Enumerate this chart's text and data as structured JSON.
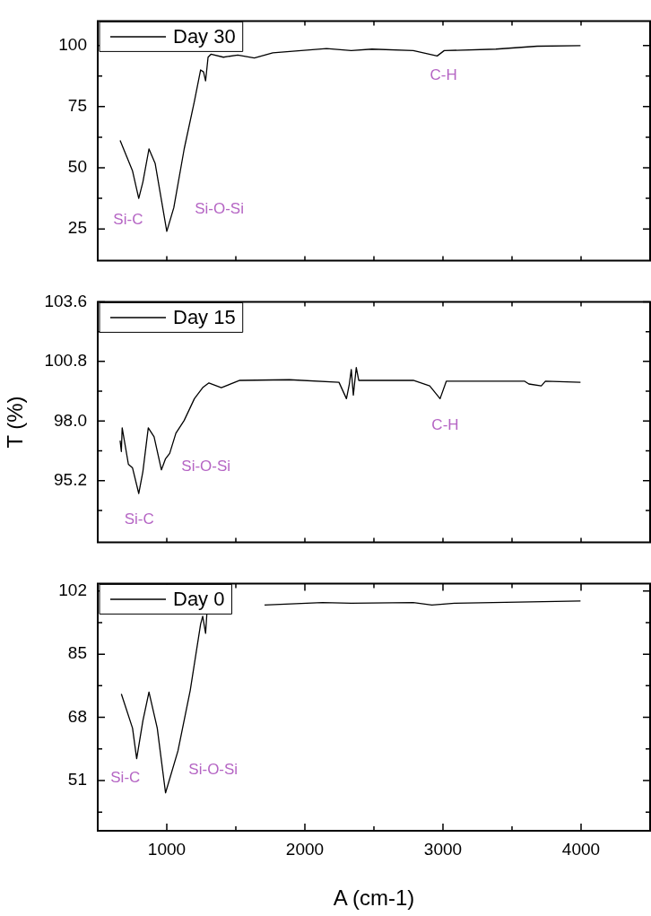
{
  "chart_data": [
    {
      "type": "line",
      "x": [
        662,
        752,
        797,
        827,
        871,
        916,
        1000,
        1051,
        1126,
        1200,
        1245,
        1266,
        1281,
        1299,
        1320,
        1410,
        1514,
        1634,
        1768,
        2157,
        2336,
        2486,
        2785,
        2958,
        3009,
        3383,
        3682,
        3996
      ],
      "series": [
        {
          "name": "Day 30",
          "color": "#000000",
          "values": [
            61.2,
            48.7,
            37.5,
            44.2,
            57.7,
            51.7,
            24,
            33.7,
            57.7,
            77.2,
            90,
            89.2,
            85.5,
            95.2,
            96.4,
            95.2,
            96.1,
            94.9,
            97,
            98.7,
            97.9,
            98.5,
            97.9,
            95.7,
            97.9,
            98.5,
            99.7,
            99.9
          ]
        }
      ],
      "xlim": [
        500,
        4500
      ],
      "ylim": [
        12,
        110
      ],
      "xticks": [
        {
          "value": 1000,
          "label": null
        },
        {
          "value": 1500,
          "label": null
        },
        {
          "value": 2000,
          "label": null
        },
        {
          "value": 2500,
          "label": null
        },
        {
          "value": 3000,
          "label": null
        },
        {
          "value": 3500,
          "label": null
        },
        {
          "value": 4000,
          "label": null
        }
      ],
      "yticks": [
        25,
        {
          "value": 37.5,
          "label": null
        },
        50,
        {
          "value": 62.5,
          "label": null
        },
        75,
        {
          "value": 87.5,
          "label": null
        },
        100
      ],
      "tick_labels": "y",
      "legend": "top left",
      "annotations": [
        "Si-C",
        "Si-O-Si",
        "C-H"
      ]
    },
    {
      "type": "line",
      "x": [
        662,
        671,
        677,
        722,
        752,
        797,
        827,
        866,
        908,
        961,
        991,
        1021,
        1066,
        1126,
        1200,
        1260,
        1305,
        1395,
        1529,
        1888,
        2247,
        2301,
        2322,
        2336,
        2351,
        2372,
        2390,
        2785,
        2904,
        2979,
        3024,
        3592,
        3622,
        3712,
        3742,
        3996
      ],
      "series": [
        {
          "name": "Day 15",
          "color": "#000000",
          "values": [
            97.08,
            96.57,
            97.68,
            95.97,
            95.8,
            94.6,
            95.63,
            97.68,
            97.26,
            95.71,
            96.23,
            96.48,
            97.43,
            98.03,
            99.05,
            99.57,
            99.79,
            99.57,
            99.91,
            99.94,
            99.82,
            99.05,
            99.74,
            100.42,
            99.22,
            100.51,
            99.91,
            99.91,
            99.65,
            99.05,
            99.87,
            99.87,
            99.74,
            99.65,
            99.87,
            99.82
          ]
        }
      ],
      "xlim": [
        500,
        4500
      ],
      "ylim": [
        92.3,
        103.6
      ],
      "xticks": [
        {
          "value": 1000,
          "label": null
        },
        {
          "value": 1500,
          "label": null
        },
        {
          "value": 2000,
          "label": null
        },
        {
          "value": 2500,
          "label": null
        },
        {
          "value": 3000,
          "label": null
        },
        {
          "value": 3500,
          "label": null
        },
        {
          "value": 4000,
          "label": null
        }
      ],
      "yticks": [
        {
          "value": 93.8,
          "label": null
        },
        95.2,
        {
          "value": 96.6,
          "label": null
        },
        {
          "value": 98,
          "label": "98.0"
        },
        {
          "value": 99.4,
          "label": null
        },
        100.8,
        {
          "value": 102.2,
          "label": null
        },
        103.6
      ],
      "ylabel": "T (%)",
      "tick_labels": "y",
      "legend": "top left",
      "annotations": [
        "Si-C",
        "Si-O-Si",
        "C-H"
      ]
    },
    {
      "type": "line",
      "x": [
        671,
        752,
        782,
        827,
        871,
        931,
        991,
        1081,
        1170,
        1245,
        1260,
        1281,
        1290,
        1450,
        1708,
        2127,
        2336,
        2785,
        2920,
        3084,
        3996
      ],
      "series": [
        {
          "name": "Day 0",
          "color": "#000000",
          "values": [
            74.3,
            65.1,
            56.9,
            67.1,
            74.8,
            65.1,
            47.7,
            59,
            75.3,
            93.1,
            95.2,
            90.6,
            95.7,
            null,
            98.2,
            98.9,
            98.7,
            98.9,
            98.2,
            98.7,
            99.3
          ]
        }
      ],
      "xlim": [
        500,
        4500
      ],
      "ylim": [
        37.5,
        104
      ],
      "xticks": [
        1000,
        {
          "value": 1500,
          "label": null
        },
        2000,
        {
          "value": 2500,
          "label": null
        },
        3000,
        {
          "value": 3500,
          "label": null
        },
        4000
      ],
      "yticks": [
        {
          "value": 42.5,
          "label": null
        },
        51,
        {
          "value": 59.5,
          "label": null
        },
        68,
        {
          "value": 76.5,
          "label": null
        },
        85,
        {
          "value": 93.5,
          "label": null
        },
        102
      ],
      "xlabel": "A (cm-1)",
      "legend": "top left",
      "annotations": [
        "Si-C",
        "Si-O-Si"
      ]
    }
  ]
}
